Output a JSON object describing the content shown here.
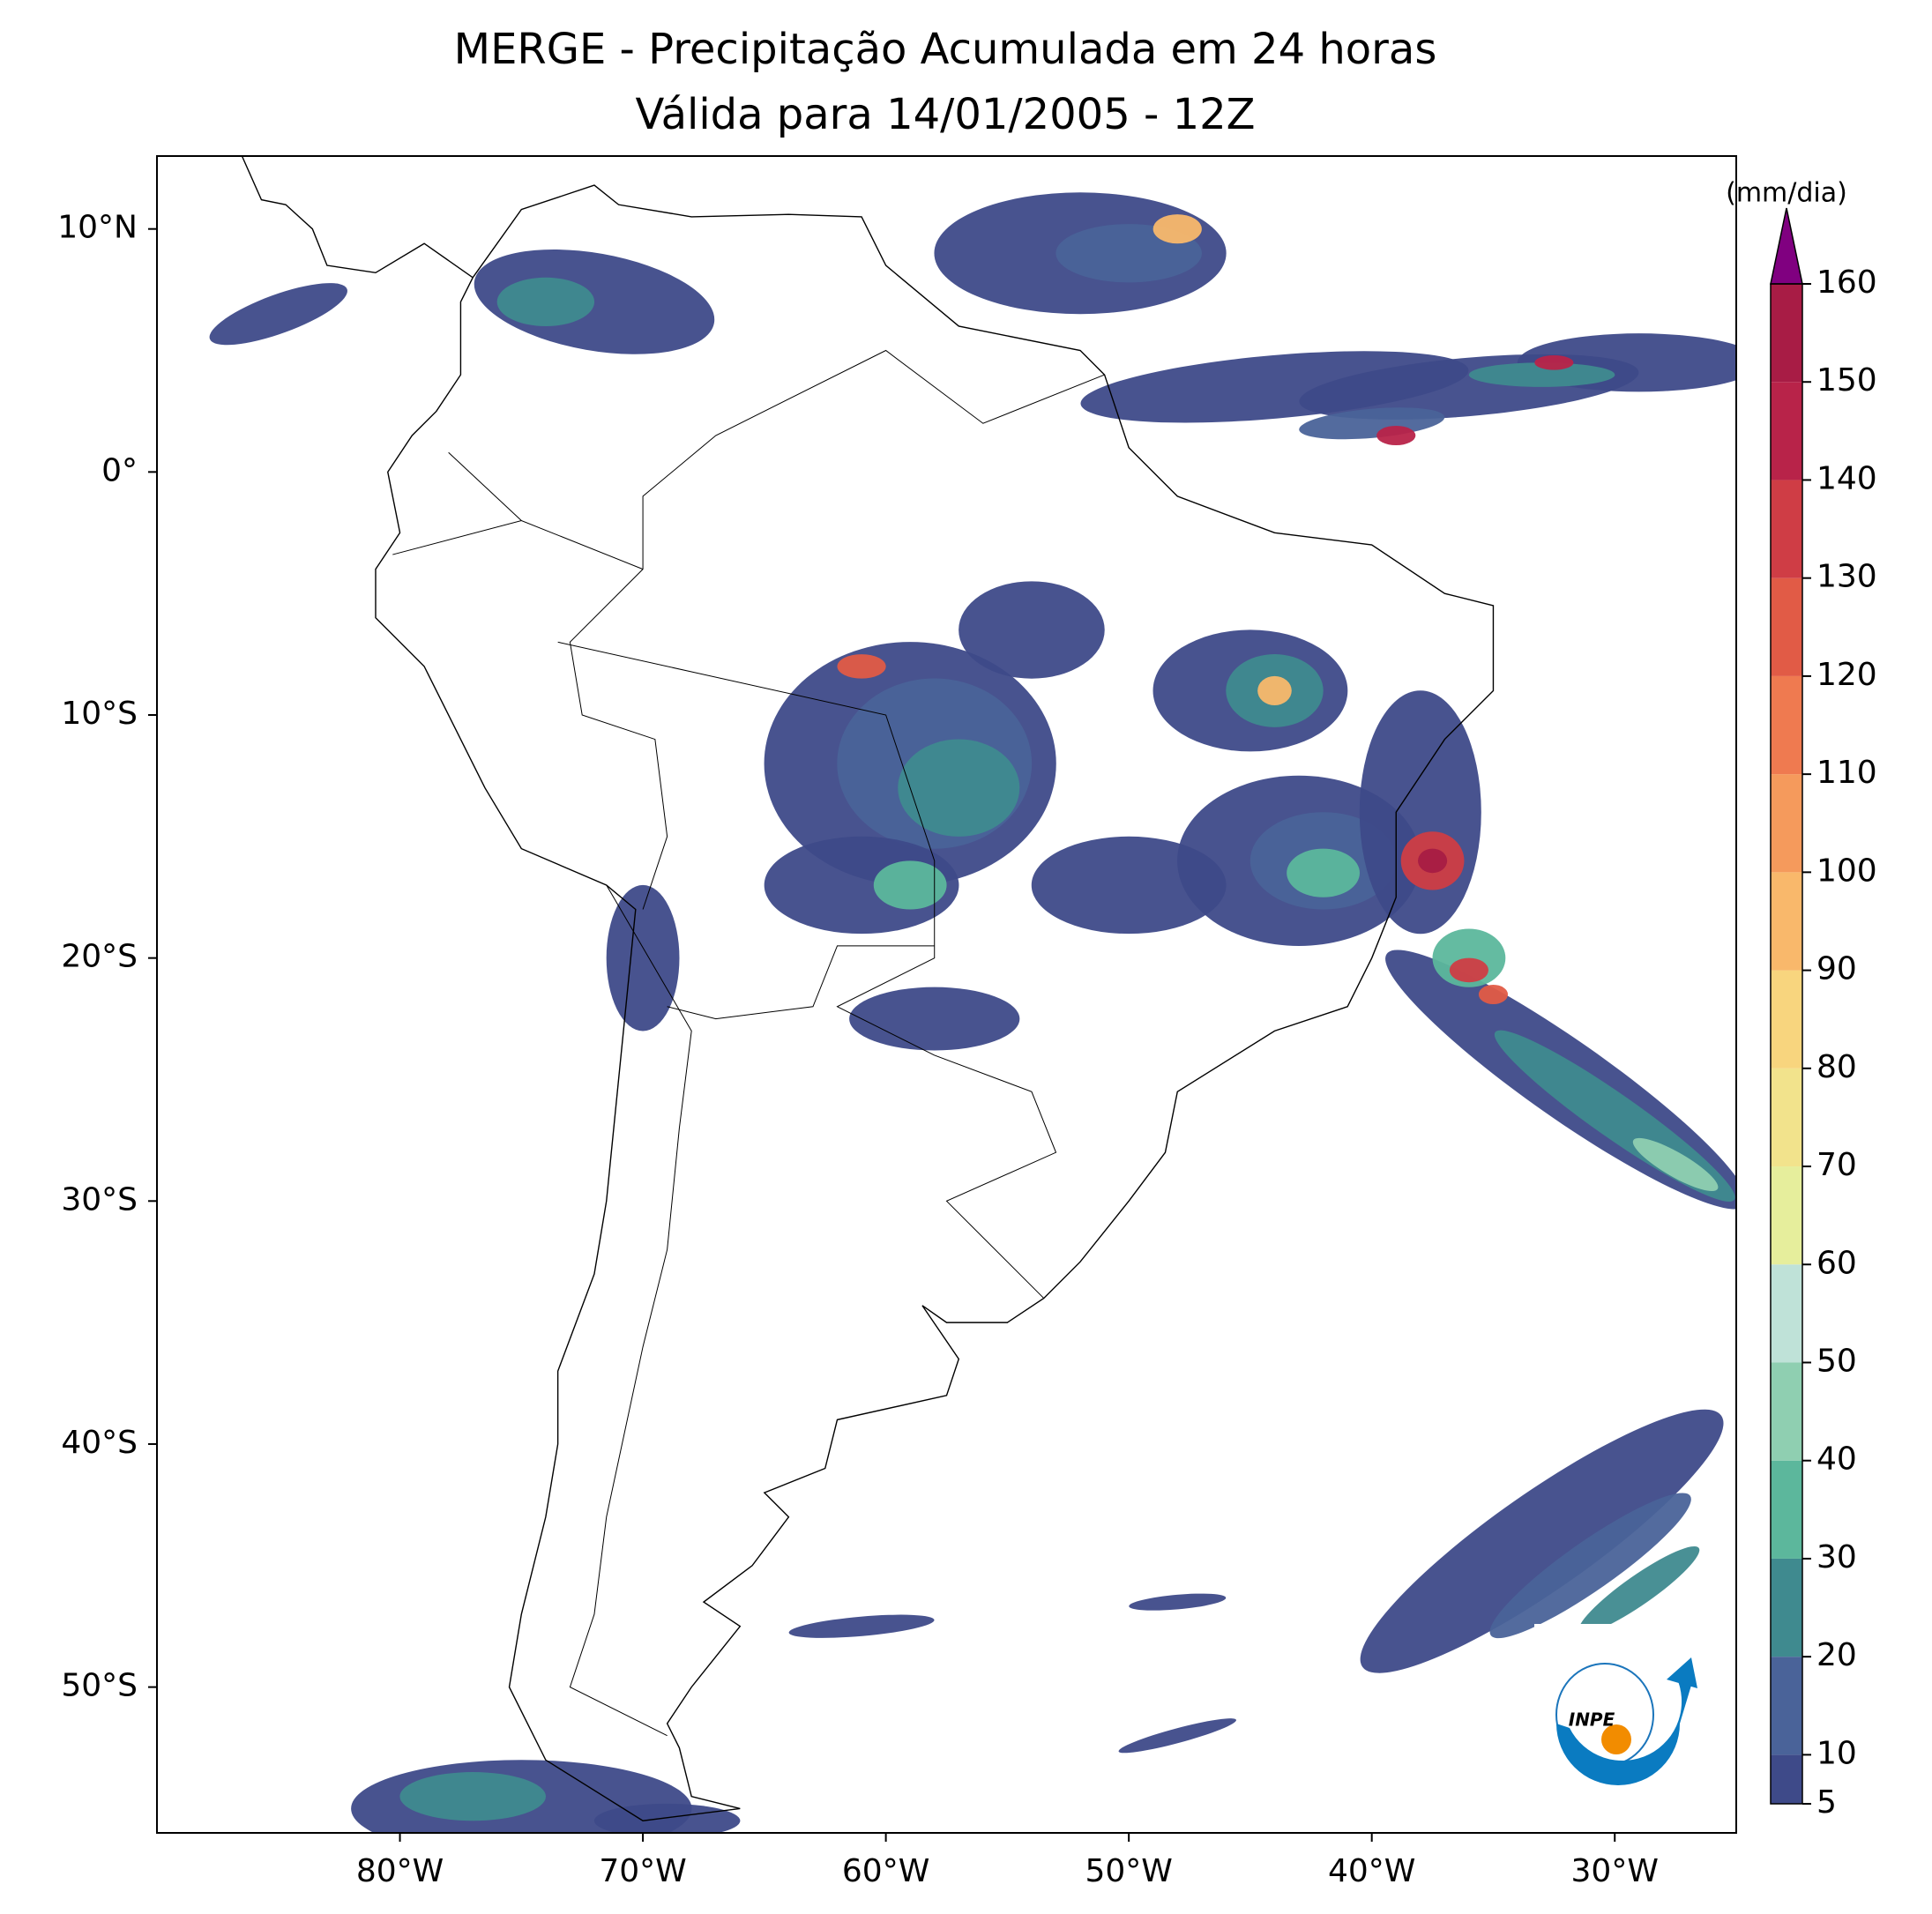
{
  "chart_data": {
    "type": "map",
    "title": "MERGE - Precipitação Acumulada em 24 horas",
    "subtitle": "Válida para 14/01/2005 - 12Z",
    "xlim": [
      -90,
      -25
    ],
    "ylim": [
      -56,
      13
    ],
    "xticks": [
      {
        "value": -80,
        "label": "80°W"
      },
      {
        "value": -70,
        "label": "70°W"
      },
      {
        "value": -60,
        "label": "60°W"
      },
      {
        "value": -50,
        "label": "50°W"
      },
      {
        "value": -40,
        "label": "40°W"
      },
      {
        "value": -30,
        "label": "30°W"
      }
    ],
    "yticks": [
      {
        "value": 10,
        "label": "10°N"
      },
      {
        "value": 0,
        "label": "0°"
      },
      {
        "value": -10,
        "label": "10°S"
      },
      {
        "value": -20,
        "label": "20°S"
      },
      {
        "value": -30,
        "label": "30°S"
      },
      {
        "value": -40,
        "label": "40°S"
      },
      {
        "value": -50,
        "label": "50°S"
      }
    ],
    "colorbar": {
      "label": "(mm/dia)",
      "ticks": [
        5,
        10,
        20,
        30,
        40,
        50,
        60,
        70,
        80,
        90,
        100,
        110,
        120,
        130,
        140,
        150,
        160
      ],
      "colors": [
        "#3e4a89",
        "#4a6399",
        "#3f8a8f",
        "#5cb79c",
        "#8fcfb1",
        "#bfe2d8",
        "#e6ee9c",
        "#f2e38c",
        "#f8d57e",
        "#f9b86b",
        "#f59a5c",
        "#ef7a50",
        "#e15b46",
        "#cf3d45",
        "#b82349",
        "#a81c45"
      ],
      "extend_color": "#800080"
    },
    "logo_text": "INPE"
  }
}
